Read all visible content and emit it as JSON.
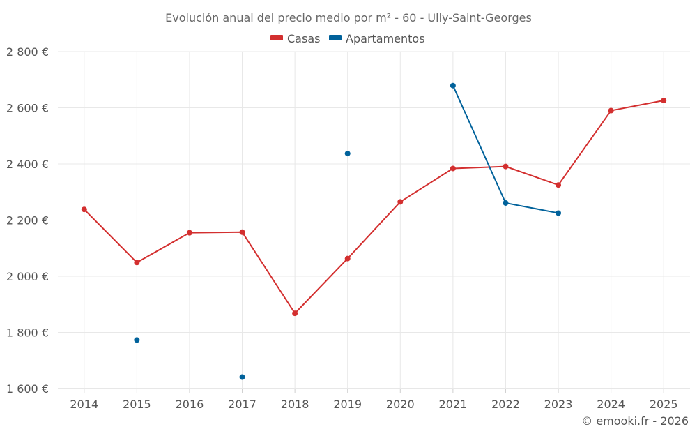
{
  "chart_data": {
    "type": "line",
    "title": "Evolución anual del precio medio por m² - 60 - Ully-Saint-Georges",
    "categories": [
      "2014",
      "2015",
      "2016",
      "2017",
      "2018",
      "2019",
      "2020",
      "2021",
      "2022",
      "2023",
      "2024",
      "2025"
    ],
    "ylim": [
      1600,
      2800
    ],
    "yticks": [
      1600,
      1800,
      2000,
      2200,
      2400,
      2600,
      2800
    ],
    "ytick_labels": [
      "1 600 €",
      "1 800 €",
      "2 000 €",
      "2 200 €",
      "2 400 €",
      "2 600 €",
      "2 800 €"
    ],
    "xlabel": "",
    "ylabel": "",
    "grid": true,
    "legend_position": "top-center",
    "series": [
      {
        "name": "Casas",
        "color": "#d32f2f",
        "values": [
          2238,
          2049,
          2155,
          2157,
          1868,
          2063,
          2265,
          2384,
          2391,
          2325,
          2590,
          2626
        ]
      },
      {
        "name": "Apartamentos",
        "color": "#01629b",
        "values": [
          null,
          1773,
          null,
          1641,
          null,
          2437,
          null,
          2679,
          2261,
          2225,
          null,
          null
        ]
      }
    ]
  },
  "credit": "© emooki.fr - 2026"
}
